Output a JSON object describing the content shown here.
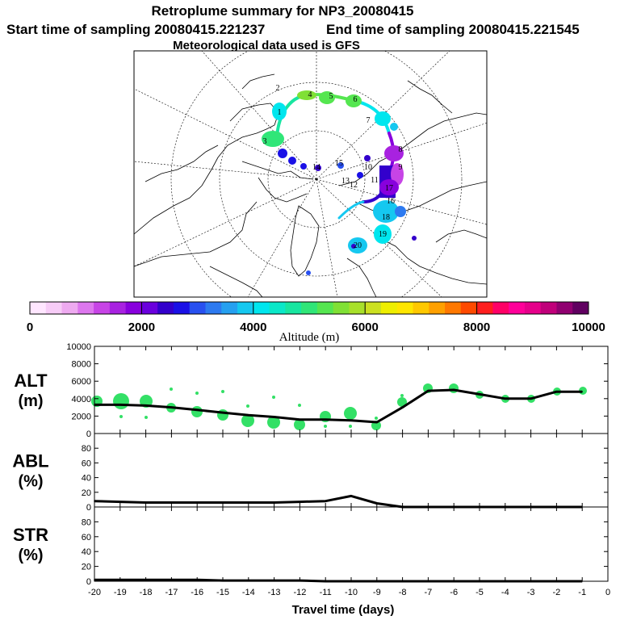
{
  "header": {
    "title": "Retroplume summary for NP3_20080415",
    "start_time": "Start time of sampling 20080415.221237",
    "end_time": "End time of sampling 20080415.221545",
    "met_data": "Meteorological data used is GFS"
  },
  "map": {
    "day_labels": [
      "1",
      "2",
      "3",
      "4",
      "5",
      "6",
      "7",
      "8",
      "9",
      "10",
      "11",
      "12",
      "13",
      "14",
      "15",
      "16",
      "17",
      "18",
      "19",
      "20"
    ]
  },
  "colorbar": {
    "label": "Altitude (m)",
    "tick_labels": [
      "0",
      "2000",
      "4000",
      "6000",
      "8000",
      "10000"
    ],
    "colors": [
      "#ffe6ff",
      "#f7ccf7",
      "#eeaaf0",
      "#dd77ee",
      "#c744e6",
      "#a822e0",
      "#8800dd",
      "#6a00dd",
      "#3300cc",
      "#1a10e6",
      "#2850f0",
      "#2d7af0",
      "#25a0f0",
      "#15c8f0",
      "#00e6ee",
      "#0ae8c8",
      "#18e6a0",
      "#30e678",
      "#55e650",
      "#80e035",
      "#a8e02a",
      "#cce020",
      "#eeee00",
      "#ffe600",
      "#ffc800",
      "#ffa000",
      "#ff7800",
      "#ff4a00",
      "#ff1e1e",
      "#ff0066",
      "#ff0099",
      "#e6008a",
      "#c0007a",
      "#900070",
      "#600060"
    ]
  },
  "chart_data": [
    {
      "type": "line",
      "name": "ALT",
      "ylabel_line1": "ALT",
      "ylabel_line2": "(m)",
      "ylim": [
        0,
        10000
      ],
      "yticks": [
        "0",
        "2000",
        "4000",
        "6000",
        "8000",
        "10000"
      ],
      "x": [
        -20,
        -19,
        -18,
        -17,
        -16,
        -15,
        -14,
        -13,
        -12,
        -11,
        -10,
        -9,
        -8,
        -7,
        -6,
        -5,
        -4,
        -3,
        -2,
        -1
      ],
      "values": [
        3300,
        3300,
        3200,
        3000,
        2700,
        2400,
        2100,
        1900,
        1600,
        1600,
        1500,
        1300,
        3000,
        4900,
        5000,
        4500,
        4000,
        4000,
        4800,
        4800
      ]
    },
    {
      "type": "line",
      "name": "ABL",
      "ylabel_line1": "ABL",
      "ylabel_line2": "(%)",
      "ylim": [
        0,
        100
      ],
      "yticks": [
        "0",
        "20",
        "40",
        "60",
        "80"
      ],
      "x": [
        -20,
        -19,
        -18,
        -17,
        -16,
        -15,
        -14,
        -13,
        -12,
        -11,
        -10,
        -9,
        -8,
        -7,
        -6,
        -5,
        -4,
        -3,
        -2,
        -1
      ],
      "values": [
        8,
        7,
        6,
        6,
        6,
        6,
        6,
        6,
        7,
        8,
        15,
        5,
        0,
        0,
        0,
        0,
        0,
        0,
        0,
        0
      ]
    },
    {
      "type": "line",
      "name": "STR",
      "ylabel_line1": "STR",
      "ylabel_line2": "(%)",
      "ylim": [
        0,
        100
      ],
      "yticks": [
        "0",
        "20",
        "40",
        "60",
        "80"
      ],
      "x": [
        -20,
        -19,
        -18,
        -17,
        -16,
        -15,
        -14,
        -13,
        -12,
        -11,
        -10,
        -9,
        -8,
        -7,
        -6,
        -5,
        -4,
        -3,
        -2,
        -1
      ],
      "values": [
        2,
        2,
        2,
        2,
        2,
        1,
        1,
        1,
        1,
        0,
        0,
        0,
        0,
        0,
        0,
        0,
        0,
        0,
        0,
        0
      ],
      "xlabel": "Travel time (days)",
      "xticks": [
        "-20",
        "-19",
        "-18",
        "-17",
        "-16",
        "-15",
        "-14",
        "-13",
        "-12",
        "-11",
        "-10",
        "-9",
        "-8",
        "-7",
        "-6",
        "-5",
        "-4",
        "-3",
        "-2",
        "-1",
        "0"
      ]
    }
  ]
}
